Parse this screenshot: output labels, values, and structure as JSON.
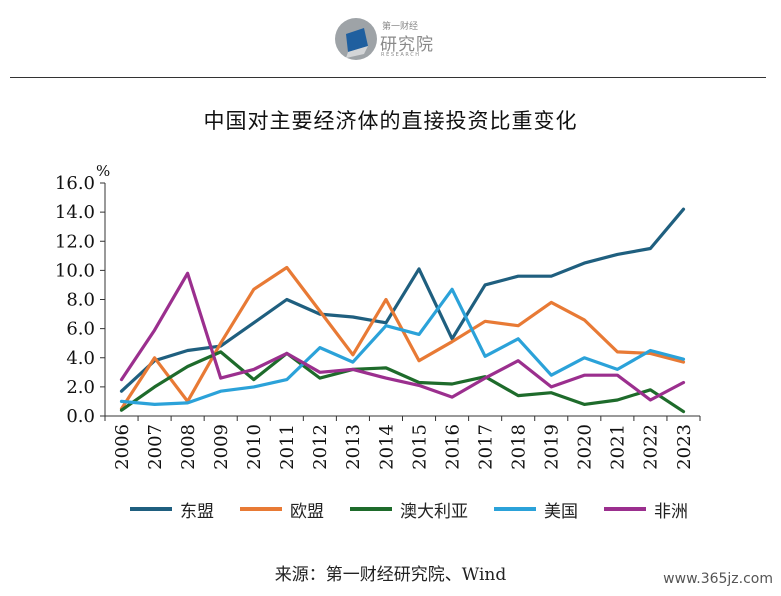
{
  "header": {
    "logo_top": "第一财经",
    "logo_cn": "研究院",
    "logo_en": "RESEARCH"
  },
  "chart_data": {
    "type": "line",
    "title": "中国对主要经济体的直接投资比重变化",
    "ylabel": "%",
    "ylim": [
      0,
      16
    ],
    "ytick_step": 2,
    "y_tick_labels": [
      "0.0",
      "2.0",
      "4.0",
      "6.0",
      "8.0",
      "10.0",
      "12.0",
      "14.0",
      "16.0"
    ],
    "categories": [
      "2006",
      "2007",
      "2008",
      "2009",
      "2010",
      "2011",
      "2012",
      "2013",
      "2014",
      "2015",
      "2016",
      "2017",
      "2018",
      "2019",
      "2020",
      "2021",
      "2022",
      "2023"
    ],
    "grid": false,
    "legend_position": "bottom",
    "series": [
      {
        "name": "东盟",
        "color": "#1f5f7f",
        "values": [
          1.7,
          3.8,
          4.5,
          4.8,
          6.4,
          8.0,
          7.0,
          6.8,
          6.4,
          10.1,
          5.3,
          9.0,
          9.6,
          9.6,
          10.5,
          11.1,
          11.5,
          14.2
        ]
      },
      {
        "name": "欧盟",
        "color": "#e87a35",
        "values": [
          0.5,
          4.0,
          1.0,
          5.0,
          8.7,
          10.2,
          7.2,
          4.2,
          8.0,
          3.8,
          5.1,
          6.5,
          6.2,
          7.8,
          6.6,
          4.4,
          4.3,
          3.7
        ]
      },
      {
        "name": "澳大利亚",
        "color": "#1e6b2b",
        "values": [
          0.4,
          2.0,
          3.4,
          4.4,
          2.5,
          4.3,
          2.6,
          3.2,
          3.3,
          2.3,
          2.2,
          2.7,
          1.4,
          1.6,
          0.8,
          1.1,
          1.8,
          0.3
        ]
      },
      {
        "name": "美国",
        "color": "#2ba2d9",
        "values": [
          1.0,
          0.8,
          0.9,
          1.7,
          2.0,
          2.5,
          4.7,
          3.7,
          6.2,
          5.6,
          8.7,
          4.1,
          5.3,
          2.8,
          4.0,
          3.2,
          4.5,
          3.9
        ]
      },
      {
        "name": "非洲",
        "color": "#9b2f8e",
        "values": [
          2.5,
          5.9,
          9.8,
          2.6,
          3.2,
          4.3,
          3.0,
          3.2,
          2.6,
          2.1,
          1.3,
          2.6,
          3.8,
          2.0,
          2.8,
          2.8,
          1.1,
          2.3
        ]
      }
    ]
  },
  "footer": {
    "source": "来源：第一财经研究院、Wind",
    "watermark": "www.365jz.com"
  }
}
